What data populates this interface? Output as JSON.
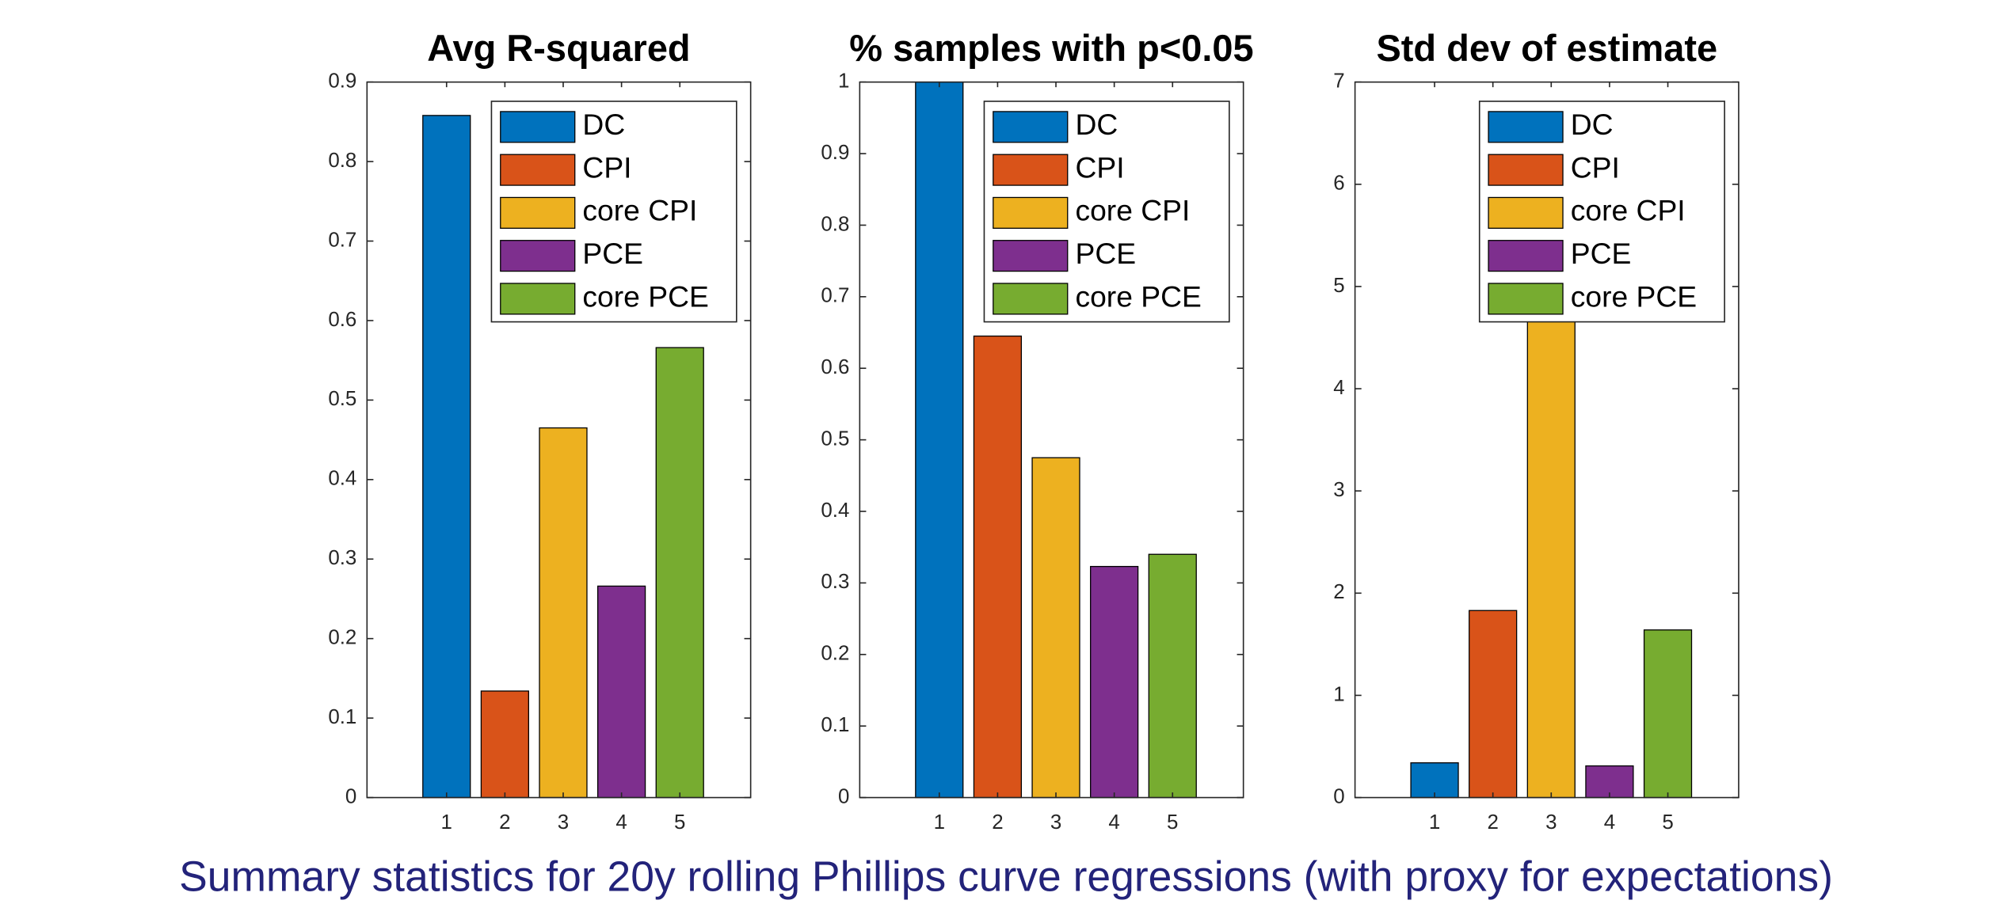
{
  "caption": "Summary statistics for 20y rolling Phillips curve regressions (with proxy for expectations)",
  "chart_data": [
    {
      "type": "bar",
      "title": "Avg R-squared",
      "categories": [
        1,
        2,
        3,
        4,
        5
      ],
      "values": [
        0.858,
        0.134,
        0.465,
        0.266,
        0.566
      ],
      "colors": [
        "#0072bd",
        "#d95319",
        "#edb120",
        "#7e2f8e",
        "#77ac30"
      ],
      "legend": [
        "DC",
        "CPI",
        "core CPI",
        "PCE",
        "core PCE"
      ],
      "legend_location": "northeast",
      "ylim": [
        0,
        0.9
      ],
      "yticks": [
        0,
        0.1,
        0.2,
        0.3,
        0.4,
        0.5,
        0.6,
        0.7,
        0.8,
        0.9
      ]
    },
    {
      "type": "bar",
      "title": "% samples with p<0.05",
      "categories": [
        1,
        2,
        3,
        4,
        5
      ],
      "values": [
        1,
        0.645,
        0.475,
        0.323,
        0.34
      ],
      "colors": [
        "#0072bd",
        "#d95319",
        "#edb120",
        "#7e2f8e",
        "#77ac30"
      ],
      "legend": [
        "DC",
        "CPI",
        "core CPI",
        "PCE",
        "core PCE"
      ],
      "legend_location": "northeast",
      "ylim": [
        0,
        1
      ],
      "yticks": [
        0,
        0.1,
        0.2,
        0.3,
        0.4,
        0.5,
        0.6,
        0.7,
        0.8,
        0.9,
        1
      ]
    },
    {
      "type": "bar",
      "title": "Std dev of estimate",
      "categories": [
        1,
        2,
        3,
        4,
        5
      ],
      "values": [
        0.34,
        1.83,
        4.8,
        0.31,
        1.64
      ],
      "colors": [
        "#0072bd",
        "#d95319",
        "#edb120",
        "#7e2f8e",
        "#77ac30"
      ],
      "legend": [
        "DC",
        "CPI",
        "core CPI",
        "PCE",
        "core PCE"
      ],
      "legend_location": "northeast",
      "ylim": [
        0,
        7
      ],
      "yticks": [
        0,
        1,
        2,
        3,
        4,
        5,
        6,
        7
      ]
    }
  ]
}
